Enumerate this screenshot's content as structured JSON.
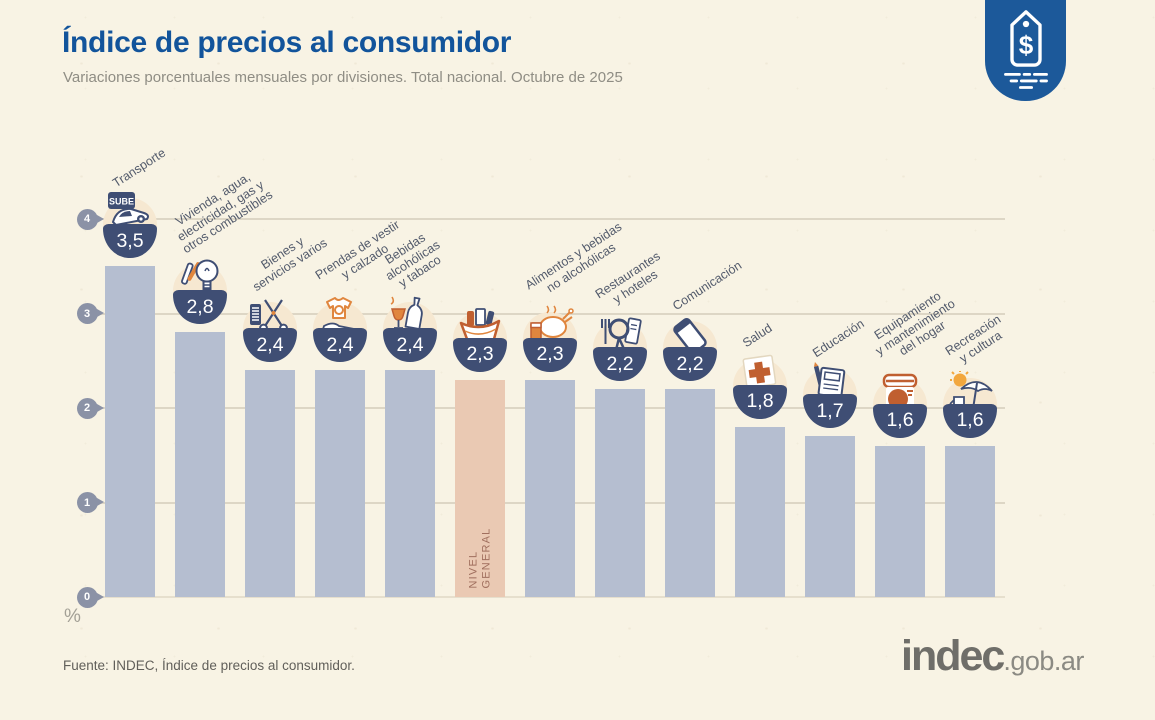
{
  "header": {
    "title": "Índice de precios al consumidor",
    "subtitle": "Variaciones porcentuales mensuales por divisiones. Total nacional. Octubre de 2025",
    "logo_badge": {
      "icon": "price-tag-icon",
      "currency_symbol": "$"
    }
  },
  "chart_data": {
    "type": "bar",
    "title": "Índice de precios al consumidor",
    "subtitle": "Variaciones porcentuales mensuales por divisiones. Total nacional. Octubre de 2025",
    "unit_label": "%",
    "ylim": [
      0,
      4
    ],
    "yticks": [
      0,
      1,
      2,
      3,
      4
    ],
    "grid": true,
    "highlight_category": "NIVEL GENERAL",
    "categories": [
      {
        "id": "transporte",
        "label": "Transporte",
        "label_lines": [
          "Transporte"
        ],
        "value": 3.5,
        "value_display": "3,5",
        "icon": "sube-card-car-icon",
        "highlight": false
      },
      {
        "id": "vivienda",
        "label": "Vivienda, agua, electricidad, gas y otros combustibles",
        "label_lines": [
          "Vivienda, agua,",
          "electricidad, gas y",
          "otros combustibles"
        ],
        "value": 2.8,
        "value_display": "2,8",
        "icon": "light-bulb-icon",
        "highlight": false
      },
      {
        "id": "bienes",
        "label": "Bienes y servicios varios",
        "label_lines": [
          "Bienes y",
          "servicios varios"
        ],
        "value": 2.4,
        "value_display": "2,4",
        "icon": "comb-scissors-icon",
        "highlight": false
      },
      {
        "id": "prendas",
        "label": "Prendas de vestir y calzado",
        "label_lines": [
          "Prendas de vestir",
          "y calzado"
        ],
        "value": 2.4,
        "value_display": "2,4",
        "icon": "tshirt-shoe-icon",
        "highlight": false
      },
      {
        "id": "bebidas",
        "label": "Bebidas alcohólicas y tabaco",
        "label_lines": [
          "Bebidas",
          "alcohólicas",
          "y tabaco"
        ],
        "value": 2.4,
        "value_display": "2,4",
        "icon": "bottle-wine-glass-icon",
        "highlight": false
      },
      {
        "id": "nivel-general",
        "label": "NIVEL GENERAL",
        "label_lines": [],
        "in_bar_label_lines": [
          "NIVEL",
          "GENERAL"
        ],
        "value": 2.3,
        "value_display": "2,3",
        "icon": "shopping-basket-icon",
        "highlight": true
      },
      {
        "id": "alimentos",
        "label": "Alimentos y bebidas no alcohólicas",
        "label_lines": [
          "Alimentos y bebidas",
          "no alcohólicas"
        ],
        "value": 2.3,
        "value_display": "2,3",
        "icon": "roast-chicken-drink-icon",
        "highlight": false
      },
      {
        "id": "restaurantes",
        "label": "Restaurantes y hoteles",
        "label_lines": [
          "Restaurantes",
          "y hoteles"
        ],
        "value": 2.2,
        "value_display": "2,2",
        "icon": "fork-magnifier-menu-icon",
        "highlight": false
      },
      {
        "id": "comunicacion",
        "label": "Comunicación",
        "label_lines": [
          "Comunicación"
        ],
        "value": 2.2,
        "value_display": "2,2",
        "icon": "smartphone-icon",
        "highlight": false
      },
      {
        "id": "salud",
        "label": "Salud",
        "label_lines": [
          "Salud"
        ],
        "value": 1.8,
        "value_display": "1,8",
        "icon": "first-aid-cross-icon",
        "highlight": false
      },
      {
        "id": "educacion",
        "label": "Educación",
        "label_lines": [
          "Educación"
        ],
        "value": 1.7,
        "value_display": "1,7",
        "icon": "notebook-pencil-icon",
        "highlight": false
      },
      {
        "id": "equipamiento",
        "label": "Equipamiento y mantenimiento del hogar",
        "label_lines": [
          "Equipamiento",
          "y mantenimiento",
          "del hogar"
        ],
        "value": 1.6,
        "value_display": "1,6",
        "icon": "washing-machine-icon",
        "highlight": false
      },
      {
        "id": "recreacion",
        "label": "Recreación y cultura",
        "label_lines": [
          "Recreación",
          "y cultura"
        ],
        "value": 1.6,
        "value_display": "1,6",
        "icon": "umbrella-sun-icon",
        "highlight": false
      }
    ],
    "colors": {
      "background": "#f8f3e4",
      "bar": "#b5bed0",
      "highlight_bar": "#eac9b3",
      "badge": "#3f4e74",
      "accent_orange": "#e0863e",
      "accent_dark_orange": "#c05f30",
      "title_blue": "#12549b",
      "brand_blue": "#1c599a",
      "axis_pin": "#8b92a6"
    }
  },
  "footer": {
    "unit_label": "%",
    "source": "Fuente: INDEC, Índice de precios al consumidor.",
    "brand_name": "indec",
    "brand_suffix": ".gob.ar"
  }
}
